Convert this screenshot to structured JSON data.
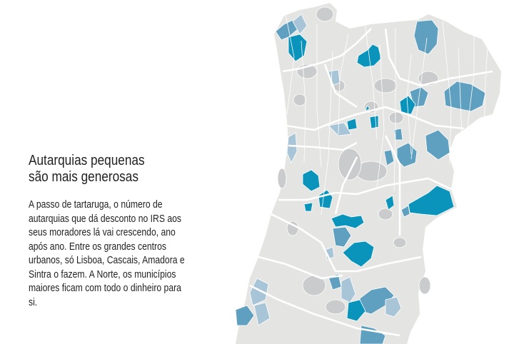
{
  "heading": "Autarquias pequenas são mais generosas",
  "heading_lines": [
    "Autarquias pequenas",
    "são mais generosas"
  ],
  "body": "A passo de tartaruga, o número de autarquias que dá desconto no IRS aos seus moradores lá vai crescendo, ano após ano. Entre os grandes centros urbanos, só Lisboa, Cascais, Amadora e Sintra o fazem. A Norte, os municípios maiores ficam com todo o dinheiro para si.",
  "map": {
    "region": "Portugal (Norte e Centro)",
    "colors": {
      "no_discount_light": "#e4e4e2",
      "no_discount_dark": "#cacbcc",
      "discount_high": "#0a93bb",
      "discount_mid": "#5f9fbf",
      "discount_low": "#a8c5d8",
      "borders": "#ffffff"
    }
  }
}
